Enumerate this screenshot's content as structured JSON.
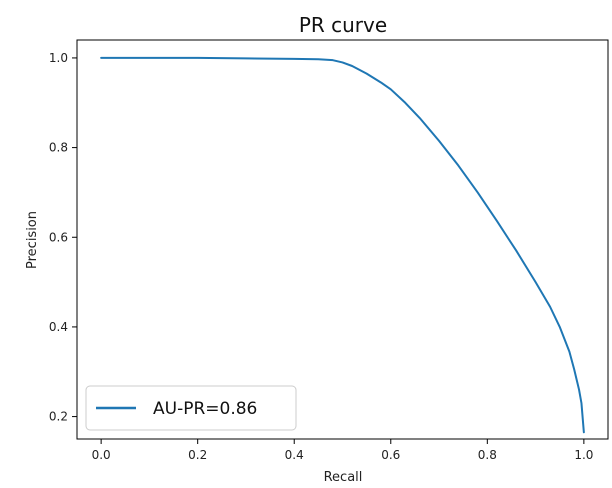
{
  "chart_data": {
    "type": "line",
    "title": "PR curve",
    "xlabel": "Recall",
    "ylabel": "Precision",
    "xlim": [
      -0.05,
      1.05
    ],
    "ylim": [
      0.15,
      1.04
    ],
    "xticks": [
      0.0,
      0.2,
      0.4,
      0.6,
      0.8,
      1.0
    ],
    "xtick_labels": [
      "0.0",
      "0.2",
      "0.4",
      "0.6",
      "0.8",
      "1.0"
    ],
    "yticks": [
      0.2,
      0.4,
      0.6,
      0.8,
      1.0
    ],
    "ytick_labels": [
      "0.2",
      "0.4",
      "0.6",
      "0.8",
      "1.0"
    ],
    "grid": false,
    "legend_position": "lower-left",
    "series": [
      {
        "name": "AU-PR=0.86",
        "color": "#1f77b4",
        "x": [
          0.0,
          0.1,
          0.2,
          0.3,
          0.4,
          0.45,
          0.48,
          0.5,
          0.52,
          0.55,
          0.58,
          0.6,
          0.63,
          0.66,
          0.7,
          0.74,
          0.78,
          0.82,
          0.86,
          0.9,
          0.93,
          0.95,
          0.97,
          0.98,
          0.99,
          0.995,
          1.0
        ],
        "y": [
          1.0,
          1.0,
          1.0,
          0.999,
          0.998,
          0.997,
          0.995,
          0.99,
          0.982,
          0.965,
          0.945,
          0.93,
          0.9,
          0.866,
          0.815,
          0.76,
          0.7,
          0.636,
          0.57,
          0.5,
          0.445,
          0.4,
          0.345,
          0.305,
          0.26,
          0.23,
          0.165
        ]
      }
    ]
  }
}
